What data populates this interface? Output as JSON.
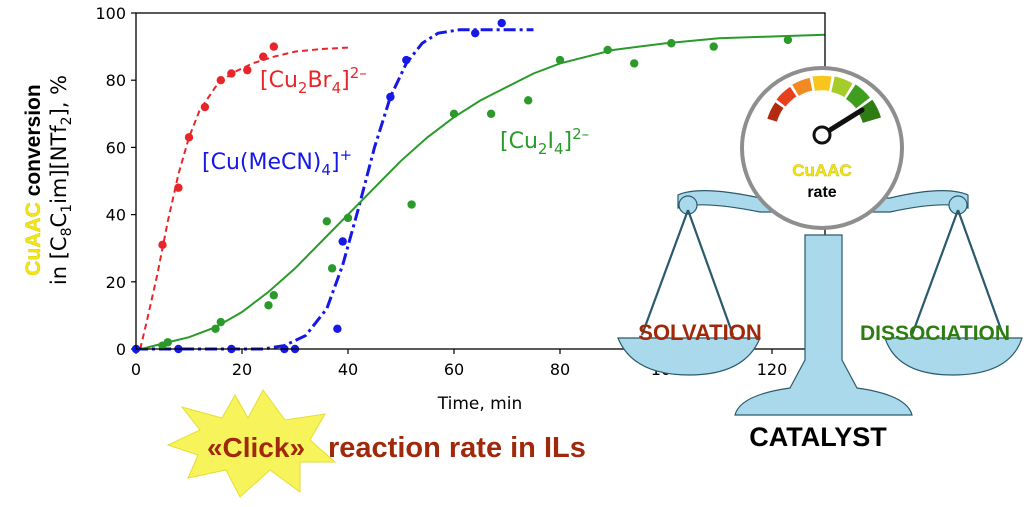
{
  "chart_data": {
    "type": "scatter",
    "xlabel": "Time, min",
    "ylabel_highlight": "CuAAC",
    "ylabel_line1_rest": " conversion",
    "ylabel_line2": "in [C8C1im][NTf2], %",
    "xlim": [
      0,
      130
    ],
    "ylim": [
      0,
      100
    ],
    "xticks": [
      "0",
      "20",
      "40",
      "60",
      "80",
      "100",
      "120"
    ],
    "yticks": [
      "0",
      "20",
      "40",
      "60",
      "80",
      "100"
    ],
    "series": [
      {
        "name": "[Cu2Br4]2–",
        "color": "#e8262a",
        "line_style": "dashed",
        "points": [
          [
            5,
            31
          ],
          [
            8,
            48
          ],
          [
            10,
            63
          ],
          [
            13,
            72
          ],
          [
            16,
            80
          ],
          [
            18,
            82
          ],
          [
            21,
            83
          ],
          [
            24,
            87
          ],
          [
            26,
            90
          ]
        ],
        "fit": [
          [
            0.8,
            0
          ],
          [
            2,
            8
          ],
          [
            4,
            22
          ],
          [
            6,
            38
          ],
          [
            8,
            52
          ],
          [
            10,
            63
          ],
          [
            12,
            71
          ],
          [
            15,
            78
          ],
          [
            18,
            82
          ],
          [
            22,
            85
          ],
          [
            26,
            87
          ],
          [
            30,
            88.5
          ],
          [
            35,
            89.3
          ],
          [
            40,
            89.7
          ]
        ]
      },
      {
        "name": "[Cu(MeCN)4]+",
        "color": "#1518e6",
        "line_style": "dashdot",
        "points": [
          [
            0,
            0
          ],
          [
            8,
            0
          ],
          [
            18,
            0
          ],
          [
            28,
            0
          ],
          [
            30,
            0
          ],
          [
            38,
            6
          ],
          [
            39,
            32
          ],
          [
            48,
            75
          ],
          [
            51,
            86
          ],
          [
            64,
            94
          ],
          [
            69,
            97
          ]
        ],
        "fit": [
          [
            0,
            0
          ],
          [
            24,
            0
          ],
          [
            28,
            1
          ],
          [
            32,
            4
          ],
          [
            36,
            12
          ],
          [
            39,
            25
          ],
          [
            42,
            42
          ],
          [
            45,
            60
          ],
          [
            48,
            75
          ],
          [
            51,
            85
          ],
          [
            54,
            91
          ],
          [
            57,
            94
          ],
          [
            61,
            95
          ],
          [
            66,
            95
          ],
          [
            75,
            95
          ]
        ]
      },
      {
        "name": "[Cu2I4]2–",
        "color": "#2a9a2a",
        "line_style": "solid",
        "points": [
          [
            5,
            1
          ],
          [
            6,
            2
          ],
          [
            15,
            6
          ],
          [
            16,
            8
          ],
          [
            25,
            13
          ],
          [
            26,
            16
          ],
          [
            36,
            38
          ],
          [
            37,
            24
          ],
          [
            40,
            39
          ],
          [
            52,
            43
          ],
          [
            60,
            70
          ],
          [
            67,
            70
          ],
          [
            74,
            74
          ],
          [
            80,
            86
          ],
          [
            89,
            89
          ],
          [
            94,
            85
          ],
          [
            101,
            91
          ],
          [
            109,
            90
          ],
          [
            123,
            92
          ]
        ],
        "fit": [
          [
            1,
            0
          ],
          [
            5,
            1.6
          ],
          [
            10,
            3.5
          ],
          [
            15,
            6.5
          ],
          [
            20,
            11
          ],
          [
            25,
            17
          ],
          [
            30,
            24
          ],
          [
            35,
            32
          ],
          [
            40,
            40
          ],
          [
            45,
            48
          ],
          [
            50,
            56
          ],
          [
            55,
            63
          ],
          [
            60,
            69
          ],
          [
            65,
            74
          ],
          [
            70,
            78
          ],
          [
            75,
            82
          ],
          [
            80,
            85
          ],
          [
            90,
            89
          ],
          [
            100,
            91
          ],
          [
            110,
            92.5
          ],
          [
            120,
            93
          ],
          [
            130,
            93.5
          ]
        ]
      }
    ]
  },
  "labels": {
    "br4": {
      "base": "[Cu",
      "sub1": "2",
      "mid": "Br",
      "sub2": "4",
      "end": "]",
      "sup": "2–"
    },
    "mecn": {
      "base": "[Cu(MeCN)",
      "sub": "4",
      "end": "]",
      "sup": "+"
    },
    "i4": {
      "base": "[Cu",
      "sub1": "2",
      "mid": "I",
      "sub2": "4",
      "end": "]",
      "sup": "2–"
    }
  },
  "ylabel_parts": {
    "in_text": "in [C",
    "s1": "8",
    "c": "C",
    "s2": "1",
    "im": "im][NTf",
    "s3": "2",
    "tail": "], %"
  },
  "gauge": {
    "title": "CuAAC",
    "subtitle": "rate"
  },
  "scale": {
    "left_label": "SOLVATION",
    "right_label": "DISSOCIATION",
    "base_label": "CATALYST"
  },
  "headline": {
    "starburst_text": "«Click»",
    "rest": "reaction rate in ILs"
  },
  "colors": {
    "red": "#e8262a",
    "blue": "#1518e6",
    "green": "#2a9a2a",
    "scale_fill": "#a9d9eb",
    "solvation": "#a0290b",
    "dissociation": "#2e7d12",
    "highlight": "#f2e614",
    "headline": "#a0290b"
  }
}
